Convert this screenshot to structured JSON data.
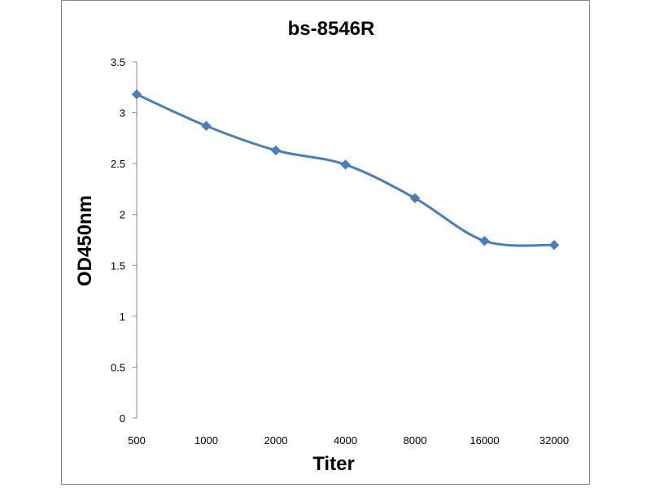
{
  "chart_data": {
    "type": "line",
    "title": "bs-8546R",
    "xlabel": "Titer",
    "ylabel": "OD450nm",
    "categories": [
      "500",
      "1000",
      "2000",
      "4000",
      "8000",
      "16000",
      "32000"
    ],
    "series": [
      {
        "values": [
          3.18,
          2.87,
          2.63,
          2.49,
          2.16,
          1.74,
          1.7
        ],
        "color": "#4a7ebb"
      }
    ],
    "ylim": [
      0,
      3.5
    ],
    "yticks": [
      "0",
      "0.5",
      "1",
      "1.5",
      "2",
      "2.5",
      "3",
      "3.5"
    ],
    "grid": false,
    "legend": "none",
    "marker": "diamond",
    "smooth": true
  }
}
